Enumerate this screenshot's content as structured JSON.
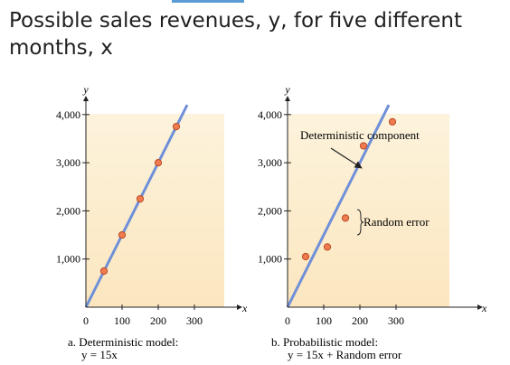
{
  "slide": {
    "title": "Possible sales revenues, y, for five different months, x"
  },
  "colors": {
    "plot_background": "#fbe6bf",
    "regression_line": "#6f8fd8",
    "point_fill": "#f07b4f",
    "point_stroke": "#b84a25",
    "axis": "#222222"
  },
  "chart_data": [
    {
      "type": "scatter",
      "panel": "a",
      "xlabel": "x",
      "ylabel": "y",
      "xticks": [
        "0",
        "100",
        "200",
        "300"
      ],
      "yticks": [
        "1,000",
        "2,000",
        "3,000",
        "4,000"
      ],
      "xlim": [
        0,
        380
      ],
      "ylim": [
        0,
        5000
      ],
      "line": {
        "x": [
          0,
          280
        ],
        "y": [
          0,
          4200
        ]
      },
      "points": {
        "x": [
          50,
          100,
          150,
          200,
          250
        ],
        "y": [
          750,
          1500,
          2250,
          3000,
          3750
        ]
      },
      "caption_title": "a. Deterministic model:",
      "caption_formula": "y = 15x"
    },
    {
      "type": "scatter",
      "panel": "b",
      "xlabel": "x",
      "ylabel": "y",
      "xticks": [
        "0",
        "100",
        "200",
        "300"
      ],
      "yticks": [
        "1,000",
        "2,000",
        "3,000",
        "4,000"
      ],
      "xlim": [
        0,
        380
      ],
      "ylim": [
        0,
        5000
      ],
      "line": {
        "x": [
          0,
          280
        ],
        "y": [
          0,
          4200
        ]
      },
      "points": {
        "x": [
          50,
          110,
          160,
          210,
          290
        ],
        "y": [
          1050,
          1250,
          1850,
          3350,
          3850
        ]
      },
      "annotations": {
        "component": "Deterministic component",
        "error": "Random error"
      },
      "caption_title": "b. Probabilistic model:",
      "caption_formula": "y = 15x + Random error"
    }
  ]
}
